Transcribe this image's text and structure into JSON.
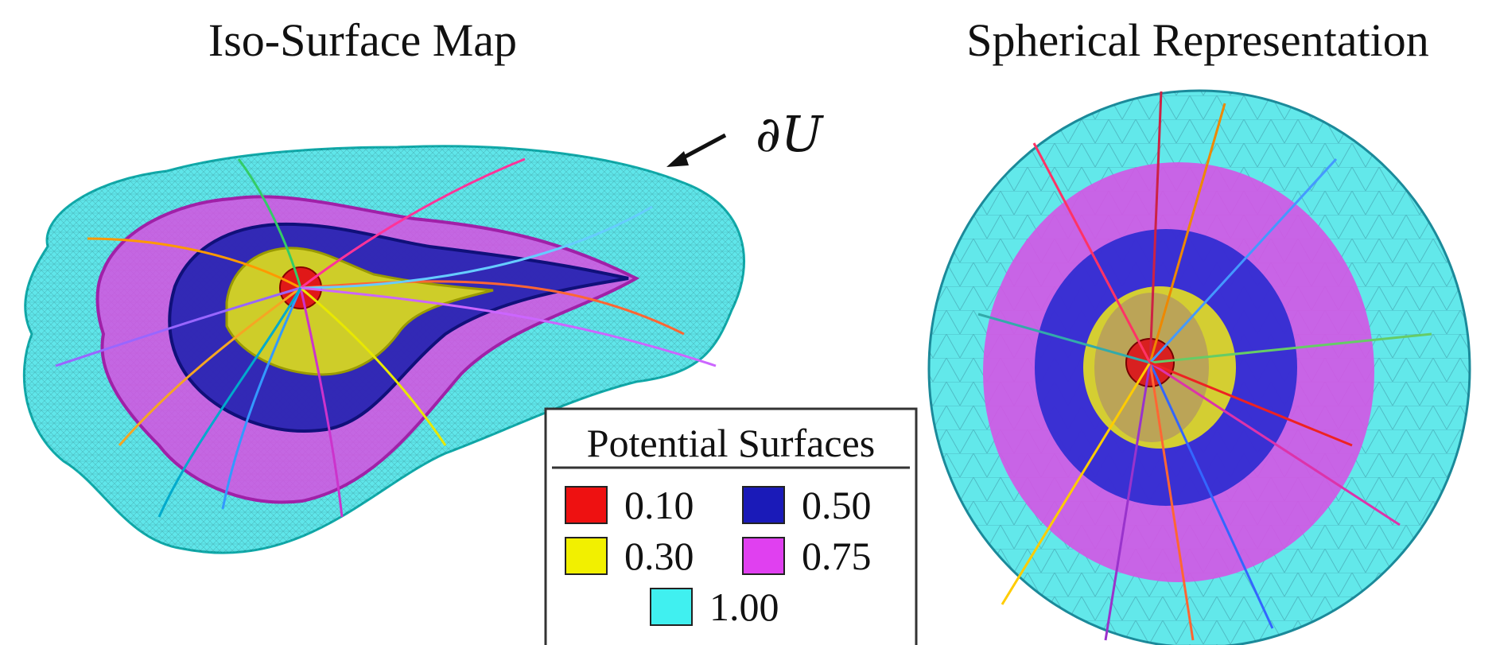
{
  "figure": {
    "left_title": "Iso-Surface Map",
    "right_title": "Spherical Representation",
    "boundary_label": "∂U",
    "legend": {
      "title": "Potential Surfaces",
      "items": [
        {
          "label": "0.10",
          "color": "#ee1111"
        },
        {
          "label": "0.50",
          "color": "#1a1ab8"
        },
        {
          "label": "0.30",
          "color": "#f2f000"
        },
        {
          "label": "0.75",
          "color": "#e040f0"
        },
        {
          "label": "1.00",
          "color": "#40f0f0"
        }
      ]
    }
  }
}
